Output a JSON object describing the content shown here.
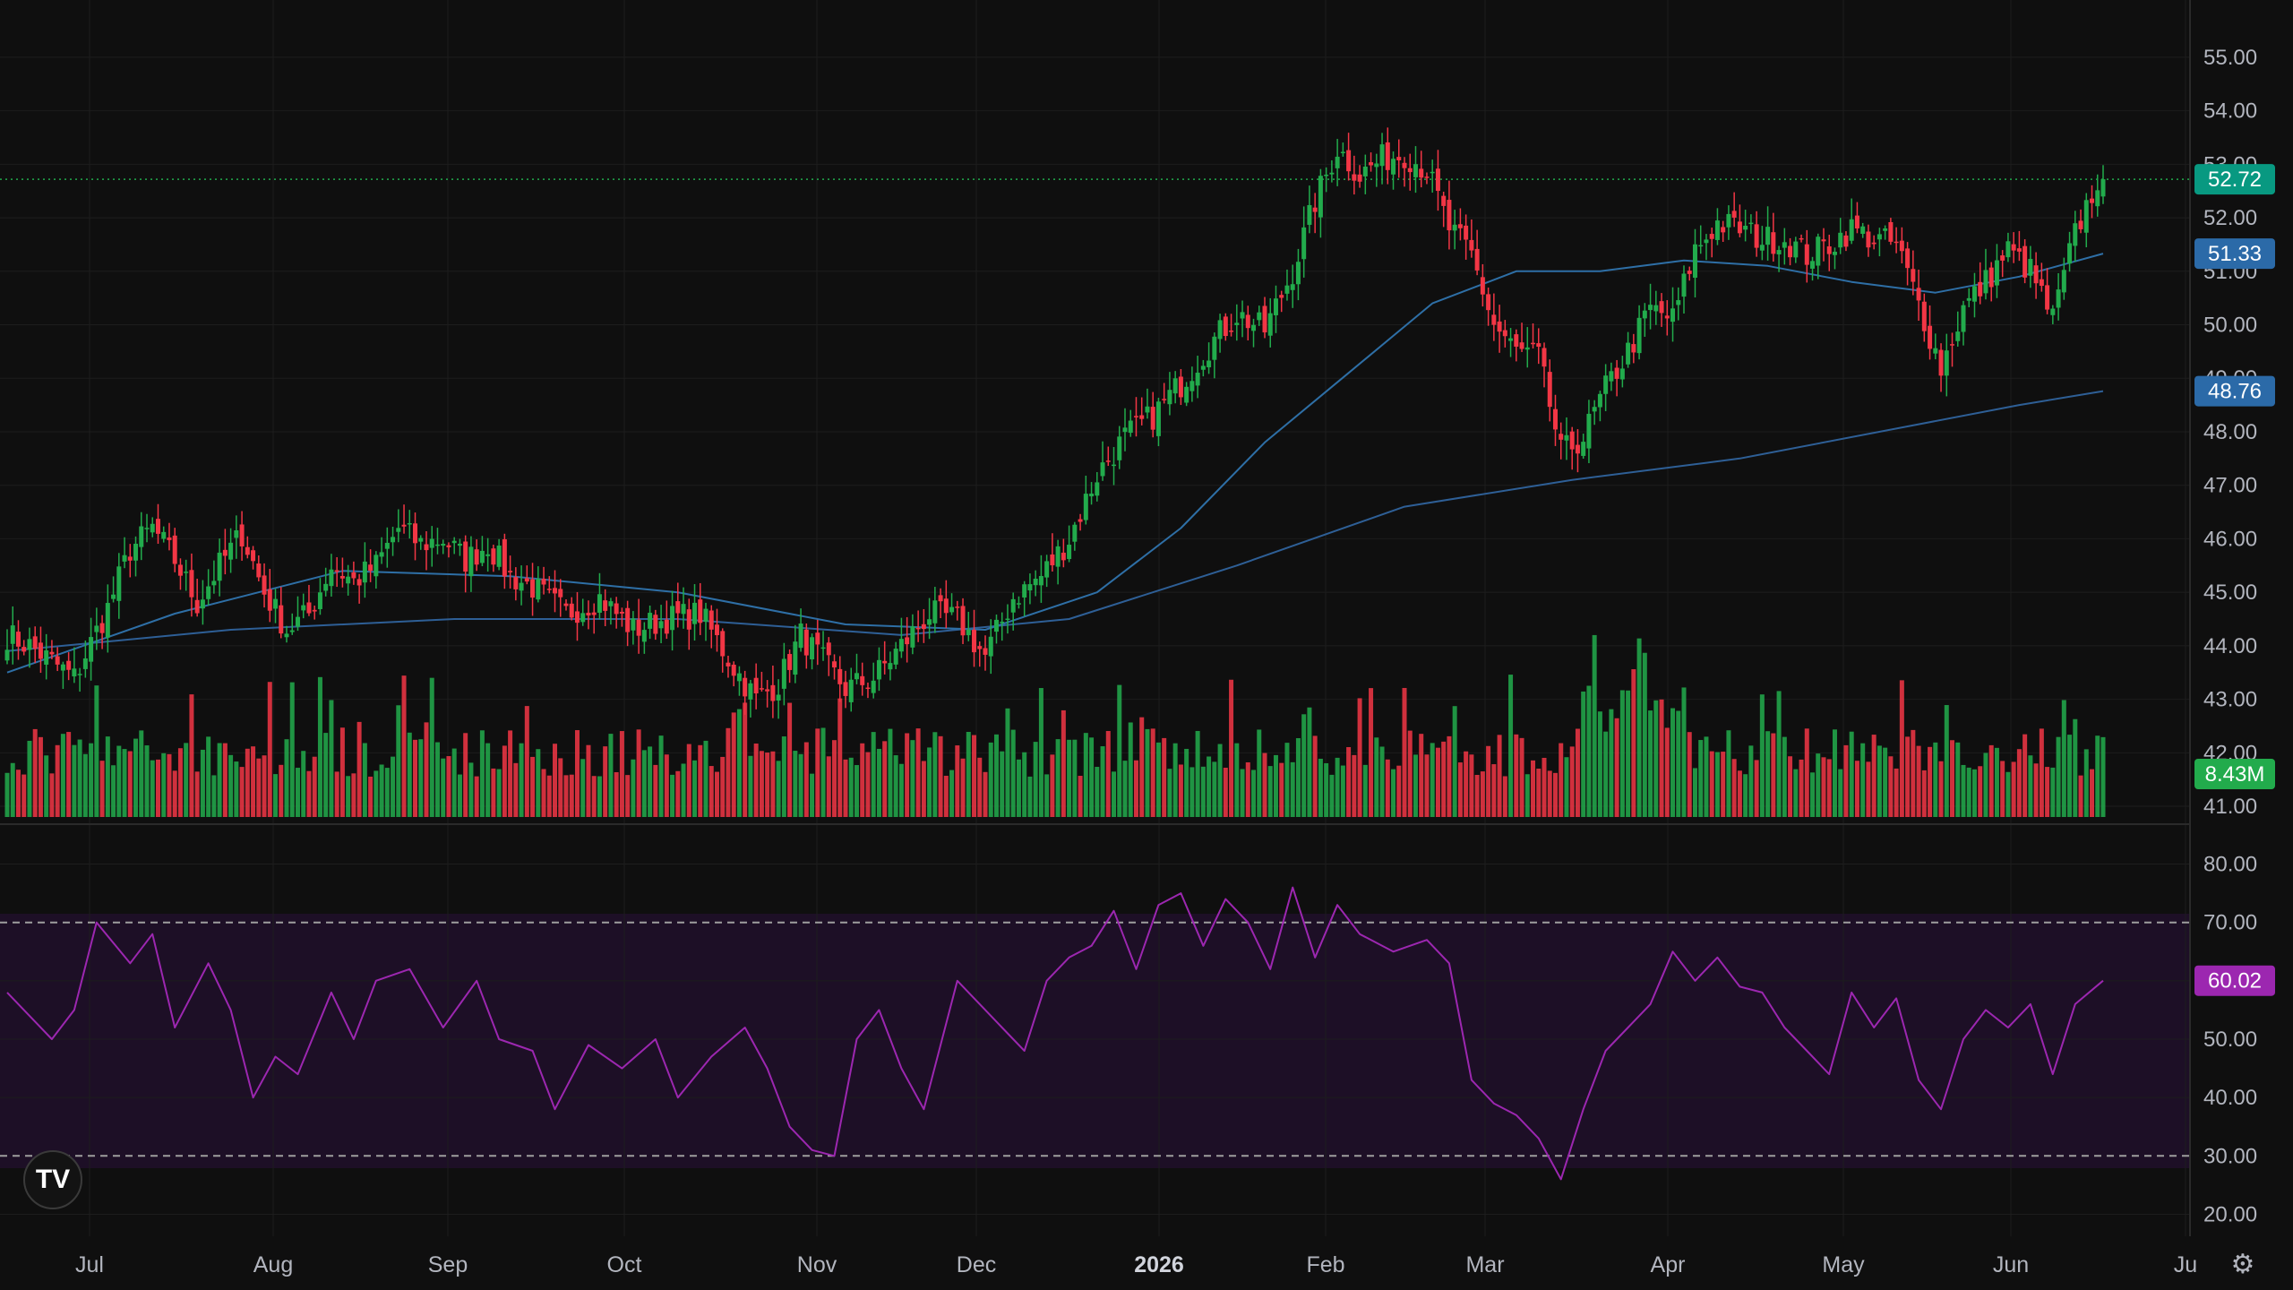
{
  "logo": {
    "text": "TV"
  },
  "settings": {
    "icon": "gear-icon"
  },
  "colors": {
    "up": "#22ab4c",
    "down": "#f23645",
    "ma_short": "#2962ff",
    "ma_long": "#1e88e5",
    "rsi": "#9c27b0",
    "rsi_band": "#1d0f26",
    "grid": "#1d1d1d",
    "background": "#0f0f0f"
  },
  "chart_data": {
    "type": "candlestick",
    "price_axis": {
      "ticks": [
        "55.00",
        "54.00",
        "53.00",
        "52.00",
        "51.00",
        "50.00",
        "49.00",
        "48.00",
        "47.00",
        "46.00",
        "45.00",
        "44.00",
        "43.00",
        "42.00",
        "41.00"
      ],
      "range": [
        40.8,
        55.4
      ]
    },
    "rsi_axis": {
      "ticks": [
        "80.00",
        "70.00",
        "60.00",
        "50.00",
        "40.00",
        "30.00",
        "20.00"
      ],
      "range": [
        17,
        83
      ],
      "bands": [
        30,
        70
      ]
    },
    "time_axis": {
      "labels": [
        "Jul",
        "Aug",
        "Sep",
        "Oct",
        "Nov",
        "Dec",
        "2026",
        "Feb",
        "Mar",
        "Apr",
        "May",
        "Jun",
        "Ju"
      ],
      "bold": [
        "2026"
      ]
    },
    "last_price": "52.72",
    "ma_short_value": "51.33",
    "ma_long_value": "48.76",
    "volume_value": "8.43M",
    "rsi_value": "60.02",
    "anchors": [
      [
        0,
        44.2
      ],
      [
        4,
        44.0
      ],
      [
        8,
        43.7
      ],
      [
        12,
        43.4
      ],
      [
        18,
        44.7
      ],
      [
        22,
        45.8
      ],
      [
        26,
        46.2
      ],
      [
        30,
        45.6
      ],
      [
        34,
        44.8
      ],
      [
        38,
        45.5
      ],
      [
        42,
        46.1
      ],
      [
        46,
        45.0
      ],
      [
        50,
        44.3
      ],
      [
        54,
        44.6
      ],
      [
        58,
        45.5
      ],
      [
        62,
        45.2
      ],
      [
        66,
        45.5
      ],
      [
        70,
        46.2
      ],
      [
        74,
        45.9
      ],
      [
        78,
        46.0
      ],
      [
        82,
        45.6
      ],
      [
        86,
        45.9
      ],
      [
        90,
        45.3
      ],
      [
        94,
        45.1
      ],
      [
        100,
        44.6
      ],
      [
        106,
        44.9
      ],
      [
        112,
        44.3
      ],
      [
        118,
        44.5
      ],
      [
        124,
        44.6
      ],
      [
        130,
        43.6
      ],
      [
        134,
        43.0
      ],
      [
        138,
        43.3
      ],
      [
        142,
        44.2
      ],
      [
        146,
        43.7
      ],
      [
        150,
        43.2
      ],
      [
        155,
        43.4
      ],
      [
        160,
        44.0
      ],
      [
        165,
        44.6
      ],
      [
        170,
        44.5
      ],
      [
        175,
        43.8
      ],
      [
        180,
        44.9
      ],
      [
        185,
        45.3
      ],
      [
        190,
        46.0
      ],
      [
        195,
        47.2
      ],
      [
        200,
        47.9
      ],
      [
        205,
        48.3
      ],
      [
        210,
        48.9
      ],
      [
        215,
        49.6
      ],
      [
        220,
        50.2
      ],
      [
        225,
        49.9
      ],
      [
        230,
        51.0
      ],
      [
        234,
        52.3
      ],
      [
        238,
        53.3
      ],
      [
        242,
        52.8
      ],
      [
        246,
        53.1
      ],
      [
        250,
        53.2
      ],
      [
        254,
        52.9
      ],
      [
        258,
        51.8
      ],
      [
        262,
        51.3
      ],
      [
        266,
        50.0
      ],
      [
        270,
        49.5
      ],
      [
        274,
        49.4
      ],
      [
        278,
        47.6
      ],
      [
        282,
        47.9
      ],
      [
        286,
        48.8
      ],
      [
        290,
        49.5
      ],
      [
        294,
        50.3
      ],
      [
        298,
        50.1
      ],
      [
        302,
        51.4
      ],
      [
        306,
        51.9
      ],
      [
        310,
        51.8
      ],
      [
        314,
        51.6
      ],
      [
        318,
        51.6
      ],
      [
        322,
        51.3
      ],
      [
        326,
        51.5
      ],
      [
        330,
        51.8
      ],
      [
        334,
        51.6
      ],
      [
        338,
        51.5
      ],
      [
        342,
        50.4
      ],
      [
        346,
        49.2
      ],
      [
        350,
        50.3
      ],
      [
        354,
        50.8
      ],
      [
        358,
        51.4
      ],
      [
        362,
        51.0
      ],
      [
        366,
        50.1
      ],
      [
        370,
        51.7
      ],
      [
        374,
        52.72
      ]
    ],
    "ma_short": [
      [
        0,
        43.5
      ],
      [
        30,
        44.6
      ],
      [
        60,
        45.4
      ],
      [
        90,
        45.3
      ],
      [
        120,
        45.0
      ],
      [
        150,
        44.4
      ],
      [
        175,
        44.3
      ],
      [
        195,
        45.0
      ],
      [
        210,
        46.2
      ],
      [
        225,
        47.8
      ],
      [
        240,
        49.1
      ],
      [
        255,
        50.4
      ],
      [
        270,
        51.0
      ],
      [
        285,
        51.0
      ],
      [
        300,
        51.2
      ],
      [
        315,
        51.1
      ],
      [
        330,
        50.8
      ],
      [
        345,
        50.6
      ],
      [
        360,
        50.9
      ],
      [
        375,
        51.33
      ]
    ],
    "ma_long": [
      [
        0,
        43.9
      ],
      [
        40,
        44.3
      ],
      [
        80,
        44.5
      ],
      [
        120,
        44.5
      ],
      [
        160,
        44.2
      ],
      [
        190,
        44.5
      ],
      [
        220,
        45.5
      ],
      [
        250,
        46.6
      ],
      [
        280,
        47.1
      ],
      [
        310,
        47.5
      ],
      [
        340,
        48.1
      ],
      [
        360,
        48.5
      ],
      [
        375,
        48.76
      ]
    ],
    "rsi": [
      [
        0,
        58
      ],
      [
        8,
        50
      ],
      [
        12,
        55
      ],
      [
        16,
        70
      ],
      [
        22,
        63
      ],
      [
        26,
        68
      ],
      [
        30,
        52
      ],
      [
        36,
        63
      ],
      [
        40,
        55
      ],
      [
        44,
        40
      ],
      [
        48,
        47
      ],
      [
        52,
        44
      ],
      [
        58,
        58
      ],
      [
        62,
        50
      ],
      [
        66,
        60
      ],
      [
        72,
        62
      ],
      [
        78,
        52
      ],
      [
        84,
        60
      ],
      [
        88,
        50
      ],
      [
        94,
        48
      ],
      [
        98,
        38
      ],
      [
        104,
        49
      ],
      [
        110,
        45
      ],
      [
        116,
        50
      ],
      [
        120,
        40
      ],
      [
        126,
        47
      ],
      [
        132,
        52
      ],
      [
        136,
        45
      ],
      [
        140,
        35
      ],
      [
        144,
        31
      ],
      [
        148,
        30
      ],
      [
        152,
        50
      ],
      [
        156,
        55
      ],
      [
        160,
        45
      ],
      [
        164,
        38
      ],
      [
        170,
        60
      ],
      [
        174,
        56
      ],
      [
        178,
        52
      ],
      [
        182,
        48
      ],
      [
        186,
        60
      ],
      [
        190,
        64
      ],
      [
        194,
        66
      ],
      [
        198,
        72
      ],
      [
        202,
        62
      ],
      [
        206,
        73
      ],
      [
        210,
        75
      ],
      [
        214,
        66
      ],
      [
        218,
        74
      ],
      [
        222,
        70
      ],
      [
        226,
        62
      ],
      [
        230,
        76
      ],
      [
        234,
        64
      ],
      [
        238,
        73
      ],
      [
        242,
        68
      ],
      [
        248,
        65
      ],
      [
        254,
        67
      ],
      [
        258,
        63
      ],
      [
        262,
        43
      ],
      [
        266,
        39
      ],
      [
        270,
        37
      ],
      [
        274,
        33
      ],
      [
        278,
        26
      ],
      [
        282,
        38
      ],
      [
        286,
        48
      ],
      [
        290,
        52
      ],
      [
        294,
        56
      ],
      [
        298,
        65
      ],
      [
        302,
        60
      ],
      [
        306,
        64
      ],
      [
        310,
        59
      ],
      [
        314,
        58
      ],
      [
        318,
        52
      ],
      [
        322,
        48
      ],
      [
        326,
        44
      ],
      [
        330,
        58
      ],
      [
        334,
        52
      ],
      [
        338,
        57
      ],
      [
        342,
        43
      ],
      [
        346,
        38
      ],
      [
        350,
        50
      ],
      [
        354,
        55
      ],
      [
        358,
        52
      ],
      [
        362,
        56
      ],
      [
        366,
        44
      ],
      [
        370,
        56
      ],
      [
        375,
        60.02
      ]
    ]
  }
}
